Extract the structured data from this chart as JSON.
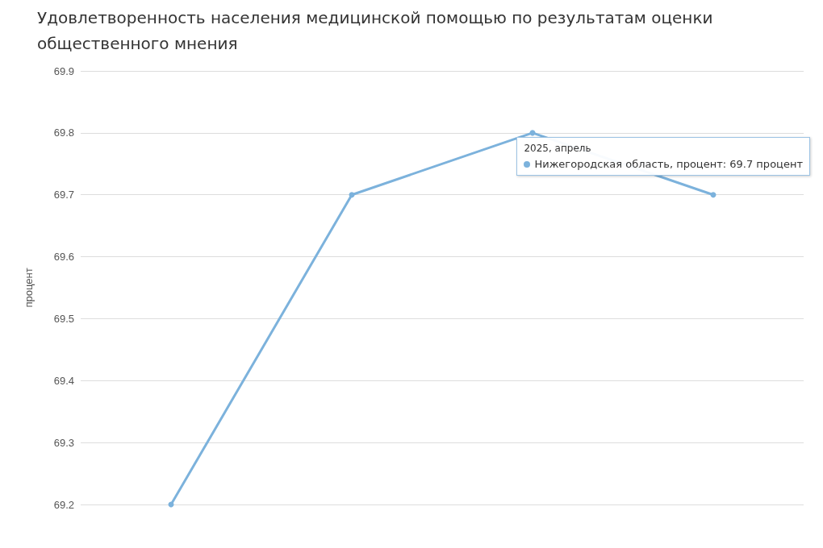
{
  "chart_data": {
    "type": "line",
    "title": "Удовлетворенность населения медицинской помощью по результатам оценки общественного мнения",
    "ylabel": "процент",
    "categories": [
      null,
      null,
      null,
      null
    ],
    "series": [
      {
        "color": "#7cb2dc",
        "values": [
          69.2,
          69.7,
          69.8,
          69.7
        ]
      }
    ],
    "ylim": [
      69.2,
      69.9
    ],
    "yticks": [
      69.2,
      69.3,
      69.4,
      69.5,
      69.6,
      69.7,
      69.8,
      69.9
    ],
    "grid": "y",
    "marker": "circle",
    "line_style": "solid",
    "annotations": [
      "2025, апрель",
      "Нижегородская область, процент: 69.7 процент"
    ]
  }
}
